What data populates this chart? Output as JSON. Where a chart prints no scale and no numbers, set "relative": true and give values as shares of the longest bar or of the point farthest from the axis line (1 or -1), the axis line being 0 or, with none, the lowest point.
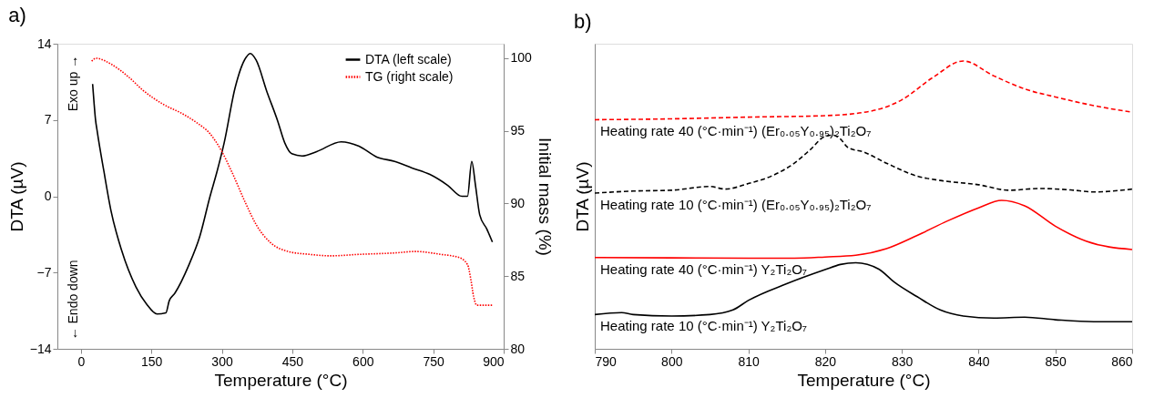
{
  "chart_data": [
    {
      "type": "line",
      "title": "a)",
      "xlabel": "Temperature (°C)",
      "ylabel": "DTA (µV)",
      "y2label": "Initial mass (%)",
      "xlim": [
        -50,
        900
      ],
      "xticks": [
        0,
        150,
        300,
        450,
        600,
        750,
        900
      ],
      "ylim": [
        -14,
        14
      ],
      "yticks": [
        -14,
        -7,
        0,
        7,
        14
      ],
      "y2lim": [
        80,
        101
      ],
      "y2ticks": [
        80,
        85,
        90,
        95,
        100
      ],
      "legend": "top right",
      "grid": false,
      "annotations": [
        "Exo up →",
        "← Endo down"
      ],
      "series": [
        {
          "name": "DTA (left scale)",
          "color": "#000000",
          "line_style": "solid",
          "x": [
            25,
            28,
            31,
            35,
            49,
            64,
            87,
            117,
            140,
            162,
            181,
            188,
            200,
            230,
            253,
            275,
            290,
            305,
            328,
            351,
            361,
            373,
            396,
            419,
            434,
            449,
            471,
            502,
            554,
            592,
            630,
            668,
            705,
            743,
            781,
            811,
            823,
            832,
            840,
            849,
            864,
            876
          ],
          "values": [
            10.3,
            8.6,
            7.1,
            5.9,
            2.3,
            -1.3,
            -5.0,
            -8.3,
            -9.9,
            -10.8,
            -10.7,
            -9.6,
            -8.9,
            -6.3,
            -3.7,
            0,
            2.3,
            4.9,
            9.9,
            12.7,
            13.1,
            12.5,
            9.6,
            6.9,
            4.9,
            3.9,
            3.7,
            4.1,
            5.0,
            4.6,
            3.6,
            3.2,
            2.6,
            2.0,
            1.0,
            0,
            0,
            3.2,
            1.0,
            -1.7,
            -3.0,
            -4.2
          ]
        },
        {
          "name": "TG (right scale)",
          "color": "#ff0000",
          "line_style": "dotted",
          "axis": "y2",
          "x": [
            23,
            32,
            64,
            102,
            132,
            177,
            215,
            245,
            275,
            298,
            321,
            351,
            374,
            404,
            441,
            487,
            532,
            592,
            668,
            713,
            766,
            804,
            823,
            830,
            836,
            843,
            876
          ],
          "values": [
            99.8,
            100.0,
            99.6,
            98.7,
            97.8,
            96.8,
            96.2,
            95.6,
            94.8,
            93.7,
            92.2,
            90.0,
            88.5,
            87.3,
            86.7,
            86.5,
            86.4,
            86.5,
            86.6,
            86.7,
            86.5,
            86.3,
            85.8,
            84.8,
            83.6,
            83.0,
            83.0
          ]
        }
      ]
    },
    {
      "type": "line",
      "title": "b)",
      "xlabel": "Temperature (°C)",
      "ylabel": "DTA (µV)",
      "relative": true,
      "xlim": [
        790,
        860
      ],
      "xticks": [
        790,
        800,
        810,
        820,
        830,
        840,
        850,
        860
      ],
      "grid": false,
      "series": [
        {
          "name": "Heating rate 40 (°C·min⁻¹) (Er₀.₀₅Y₀.₉₅)₂Ti₂O₇",
          "color": "#ff0000",
          "line_style": "dashed",
          "x": [
            790,
            800,
            810,
            820,
            826,
            830,
            834,
            838,
            842,
            846,
            850,
            855,
            860
          ],
          "values": [
            0.796,
            0.799,
            0.805,
            0.81,
            0.826,
            0.865,
            0.942,
            1.0,
            0.948,
            0.903,
            0.875,
            0.845,
            0.822
          ]
        },
        {
          "name": "Heating rate 10 (°C·min⁻¹) (Er₀.₀₅Y₀.₉₅)₂Ti₂O₇",
          "color": "#000000",
          "line_style": "dashed",
          "x": [
            790,
            795,
            800,
            805,
            807,
            810,
            813,
            816,
            818,
            820,
            821,
            822,
            823,
            825,
            828,
            832,
            835,
            840,
            844,
            848,
            852,
            855,
            860
          ],
          "values": [
            0.541,
            0.548,
            0.551,
            0.564,
            0.555,
            0.574,
            0.6,
            0.645,
            0.69,
            0.738,
            0.742,
            0.729,
            0.699,
            0.684,
            0.645,
            0.6,
            0.585,
            0.57,
            0.551,
            0.557,
            0.552,
            0.545,
            0.555
          ]
        },
        {
          "name": "Heating rate 40 (°C·min⁻¹) Y₂Ti₂O₇",
          "color": "#ff0000",
          "line_style": "solid",
          "x": [
            790,
            800,
            810,
            816,
            820,
            824,
            828,
            832,
            836,
            840,
            843,
            846,
            850,
            854,
            860
          ],
          "values": [
            0.317,
            0.316,
            0.315,
            0.315,
            0.319,
            0.325,
            0.348,
            0.394,
            0.445,
            0.49,
            0.516,
            0.497,
            0.426,
            0.374,
            0.345
          ]
        },
        {
          "name": "Heating rate 10 (°C·min⁻¹) Y₂Ti₂O₇",
          "color": "#000000",
          "line_style": "solid",
          "x": [
            790,
            793.5,
            795,
            800,
            805,
            808,
            810,
            815,
            820,
            822,
            824,
            827,
            829,
            832,
            835,
            838,
            842,
            846,
            850,
            855,
            860
          ],
          "values": [
            0.119,
            0.126,
            0.119,
            0.114,
            0.119,
            0.135,
            0.168,
            0.226,
            0.275,
            0.293,
            0.299,
            0.277,
            0.232,
            0.181,
            0.135,
            0.114,
            0.107,
            0.11,
            0.101,
            0.094,
            0.094
          ]
        }
      ]
    }
  ]
}
